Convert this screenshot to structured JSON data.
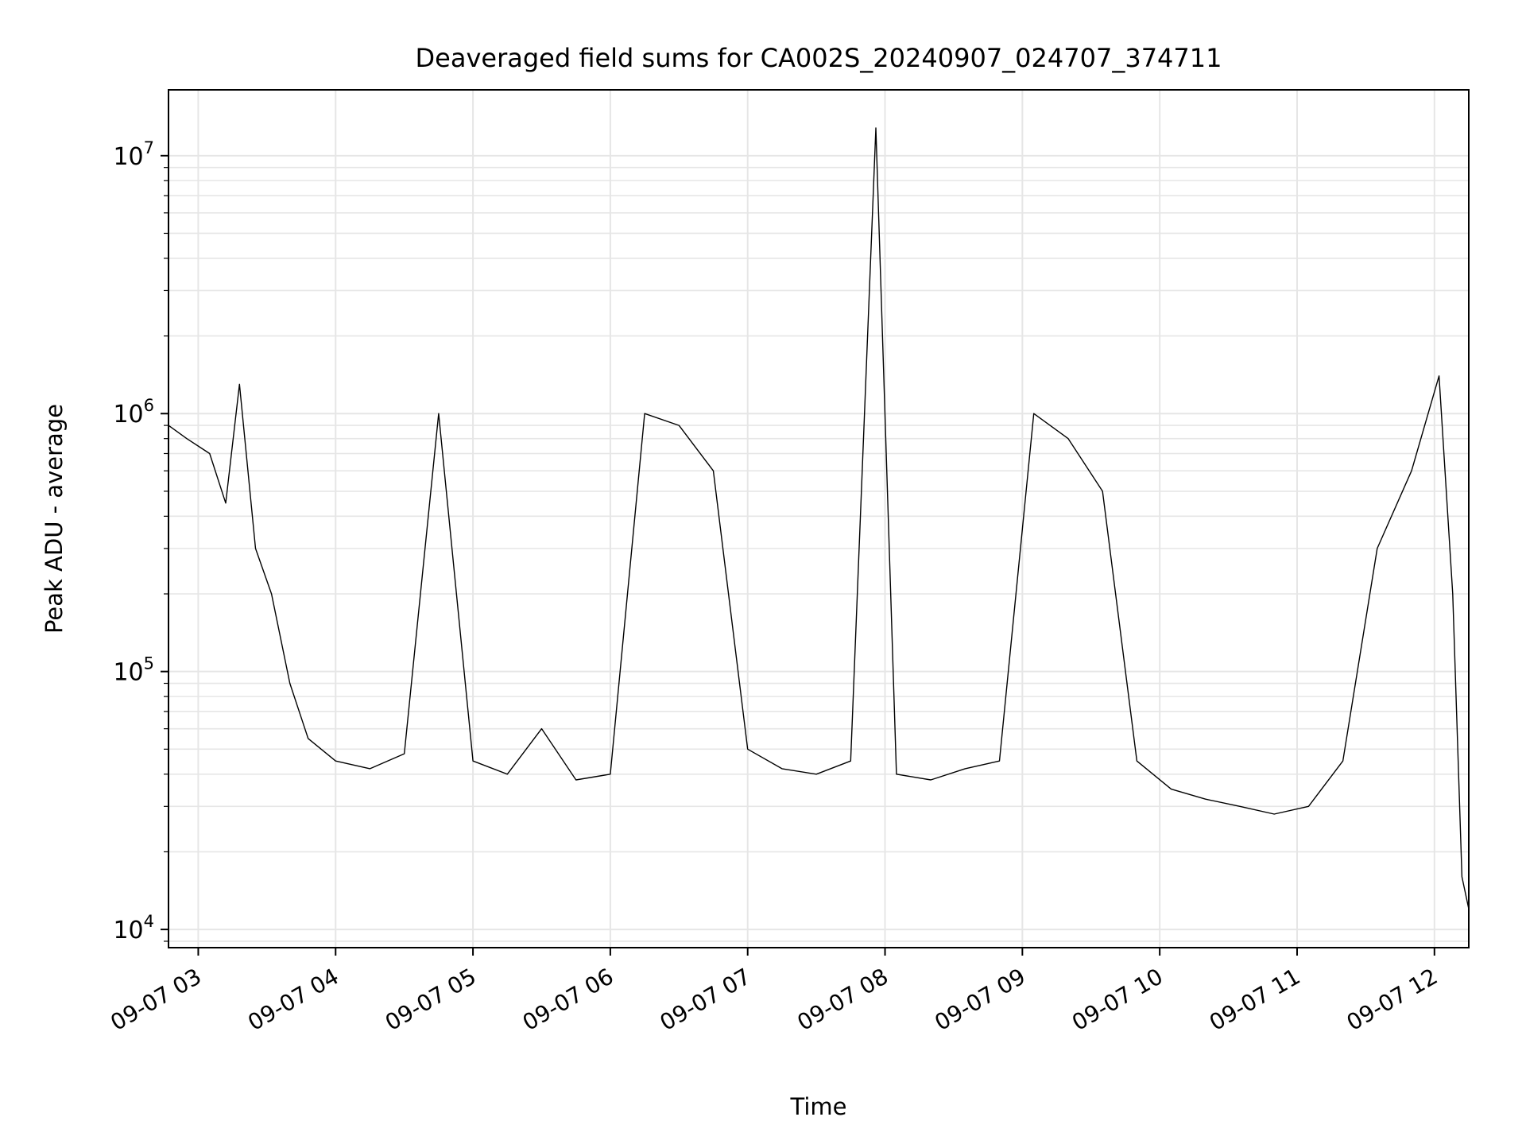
{
  "chart_data": {
    "type": "line",
    "title": "Deaveraged field sums for CA002S_20240907_024707_374711",
    "xlabel": "Time",
    "ylabel": "Peak ADU - average",
    "yscale": "log",
    "grid": true,
    "legend": "none",
    "xlim": [
      "2024-09-07 02:47",
      "2024-09-07 12:15"
    ],
    "ylim": [
      8500,
      18000000
    ],
    "x_ticks": [
      {
        "value": "2024-09-07 03:00",
        "label": "09-07 03"
      },
      {
        "value": "2024-09-07 04:00",
        "label": "09-07 04"
      },
      {
        "value": "2024-09-07 05:00",
        "label": "09-07 05"
      },
      {
        "value": "2024-09-07 06:00",
        "label": "09-07 06"
      },
      {
        "value": "2024-09-07 07:00",
        "label": "09-07 07"
      },
      {
        "value": "2024-09-07 08:00",
        "label": "09-07 08"
      },
      {
        "value": "2024-09-07 09:00",
        "label": "09-07 09"
      },
      {
        "value": "2024-09-07 10:00",
        "label": "09-07 10"
      },
      {
        "value": "2024-09-07 11:00",
        "label": "09-07 11"
      },
      {
        "value": "2024-09-07 12:00",
        "label": "09-07 12"
      }
    ],
    "y_ticks": [
      {
        "value": 10000,
        "base": "10",
        "exp": "4"
      },
      {
        "value": 100000,
        "base": "10",
        "exp": "5"
      },
      {
        "value": 1000000,
        "base": "10",
        "exp": "6"
      },
      {
        "value": 10000000,
        "base": "10",
        "exp": "7"
      }
    ],
    "line_color": "#000000",
    "series": [
      {
        "values_note_removed": true,
        "x": [
          "2024-09-07 02:47",
          "2024-09-07 02:55",
          "2024-09-07 03:05",
          "2024-09-07 03:12",
          "2024-09-07 03:18",
          "2024-09-07 03:25",
          "2024-09-07 03:32",
          "2024-09-07 03:40",
          "2024-09-07 03:48",
          "2024-09-07 04:00",
          "2024-09-07 04:15",
          "2024-09-07 04:30",
          "2024-09-07 04:45",
          "2024-09-07 05:00",
          "2024-09-07 05:15",
          "2024-09-07 05:30",
          "2024-09-07 05:45",
          "2024-09-07 06:00",
          "2024-09-07 06:15",
          "2024-09-07 06:30",
          "2024-09-07 06:45",
          "2024-09-07 07:00",
          "2024-09-07 07:15",
          "2024-09-07 07:30",
          "2024-09-07 07:45",
          "2024-09-07 07:56",
          "2024-09-07 08:05",
          "2024-09-07 08:20",
          "2024-09-07 08:35",
          "2024-09-07 08:50",
          "2024-09-07 09:05",
          "2024-09-07 09:20",
          "2024-09-07 09:35",
          "2024-09-07 09:50",
          "2024-09-07 10:05",
          "2024-09-07 10:20",
          "2024-09-07 10:35",
          "2024-09-07 10:50",
          "2024-09-07 11:05",
          "2024-09-07 11:20",
          "2024-09-07 11:35",
          "2024-09-07 11:50",
          "2024-09-07 12:02",
          "2024-09-07 12:08",
          "2024-09-07 12:12",
          "2024-09-07 12:15"
        ],
        "values": [
          900000,
          800000,
          700000,
          450000,
          1300000,
          300000,
          200000,
          90000,
          55000,
          45000,
          42000,
          48000,
          1000000,
          45000,
          40000,
          60000,
          38000,
          40000,
          1000000,
          900000,
          600000,
          50000,
          42000,
          40000,
          45000,
          12800000,
          40000,
          38000,
          42000,
          45000,
          1000000,
          800000,
          500000,
          45000,
          35000,
          32000,
          30000,
          28000,
          30000,
          45000,
          300000,
          600000,
          1400000,
          200000,
          16000,
          12000
        ]
      }
    ]
  }
}
